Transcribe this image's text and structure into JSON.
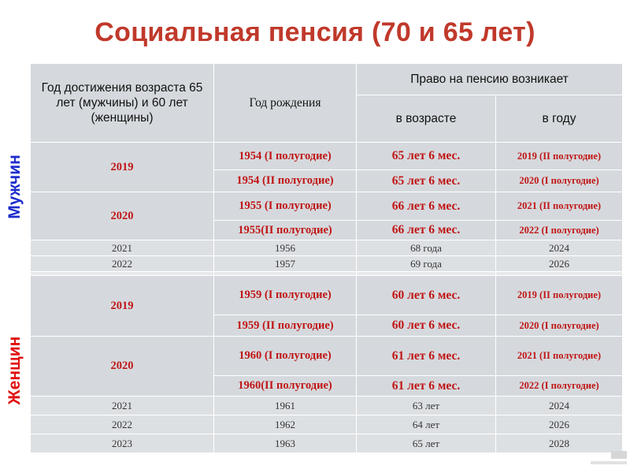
{
  "title": "Социальная пенсия (70 и 65 лет)",
  "side_labels": {
    "men": "Мужчин",
    "women": "Женщин"
  },
  "header": {
    "col1": "Год достижения возраста 65 лет  (мужчины) и 60 лет (женщины)",
    "col2": "Год рождения",
    "group": "Право на пенсию возникает",
    "col3": "в возрасте",
    "col4": "в году"
  },
  "men": {
    "bold_rows": [
      {
        "year": "2019",
        "birth": "1954 (I полугодие)",
        "age": "65 лет 6 мес.",
        "right_year": "2019 (II полугодие)"
      },
      {
        "birth": "1954  (II полугодие)",
        "age": "65 лет 6 мес.",
        "right_year": "2020 (I полугодие)"
      },
      {
        "year": "2020",
        "birth": "1955 (I полугодие)",
        "age": "66 лет 6 мес.",
        "right_year": "2021 (II полугодие)"
      },
      {
        "birth": "1955(II полугодие)",
        "age": "66 лет 6 мес.",
        "right_year": "2022 (I полугодие)"
      }
    ],
    "small_rows": [
      {
        "year": "2021",
        "birth": "1956",
        "age": "68 года",
        "right_year": "2024"
      },
      {
        "year": "2022",
        "birth": "1957",
        "age": "69 года",
        "right_year": "2026"
      }
    ]
  },
  "women": {
    "bold_rows": [
      {
        "year": "2019",
        "birth": "1959 (I полугодие)",
        "age": "60 лет 6 мес.",
        "right_year": "2019 (II полугодие)"
      },
      {
        "birth": "1959 (II полугодие)",
        "age": "60 лет 6 мес.",
        "right_year": "2020 (I полугодие)"
      },
      {
        "year": "2020",
        "birth": "1960 (I полугодие)",
        "age": "61 лет 6 мес.",
        "right_year": "2021 (II полугодие)"
      },
      {
        "birth": "1960(II полугодие)",
        "age": "61 лет 6 мес.",
        "right_year": "2022 (I полугодие)"
      }
    ],
    "small_rows": [
      {
        "year": "2021",
        "birth": "1961",
        "age": "63 лет",
        "right_year": "2024"
      },
      {
        "year": "2022",
        "birth": "1962",
        "age": "64 лет",
        "right_year": "2026"
      },
      {
        "year": "2023",
        "birth": "1963",
        "age": "65 лет",
        "right_year": "2028"
      }
    ]
  },
  "colors": {
    "title": "#c0392b",
    "men_label": "#1f2dcc",
    "women_label": "#e01010",
    "cell": "#d5d9dd",
    "bold_text": "#c01515"
  }
}
